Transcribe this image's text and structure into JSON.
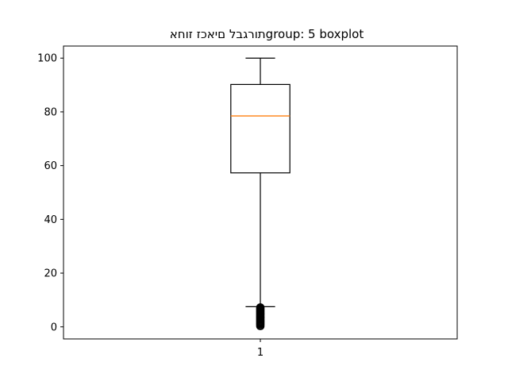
{
  "chart_data": {
    "type": "boxplot",
    "title": "תורגבל םיאכז זוחאgroup: 5 boxplot",
    "xlabel": "",
    "ylabel": "",
    "categories": [
      "1"
    ],
    "ylim": [
      -4.5,
      104.5
    ],
    "yticks": [
      0,
      20,
      40,
      60,
      80,
      100
    ],
    "boxes": [
      {
        "category": "1",
        "whisker_low": 7.5,
        "q1": 57.3,
        "median": 78.5,
        "q3": 90.2,
        "whisker_high": 100,
        "outliers": [
          0.3,
          0.8,
          1.2,
          1.6,
          2.0,
          2.4,
          2.8,
          3.2,
          3.6,
          4.0,
          4.4,
          4.8,
          5.2,
          5.6,
          6.0,
          6.4,
          6.8,
          7.2
        ]
      }
    ],
    "colors": {
      "box": "#000000",
      "median": "#ff7f0e",
      "outlier": "#000000"
    },
    "grid": false
  }
}
